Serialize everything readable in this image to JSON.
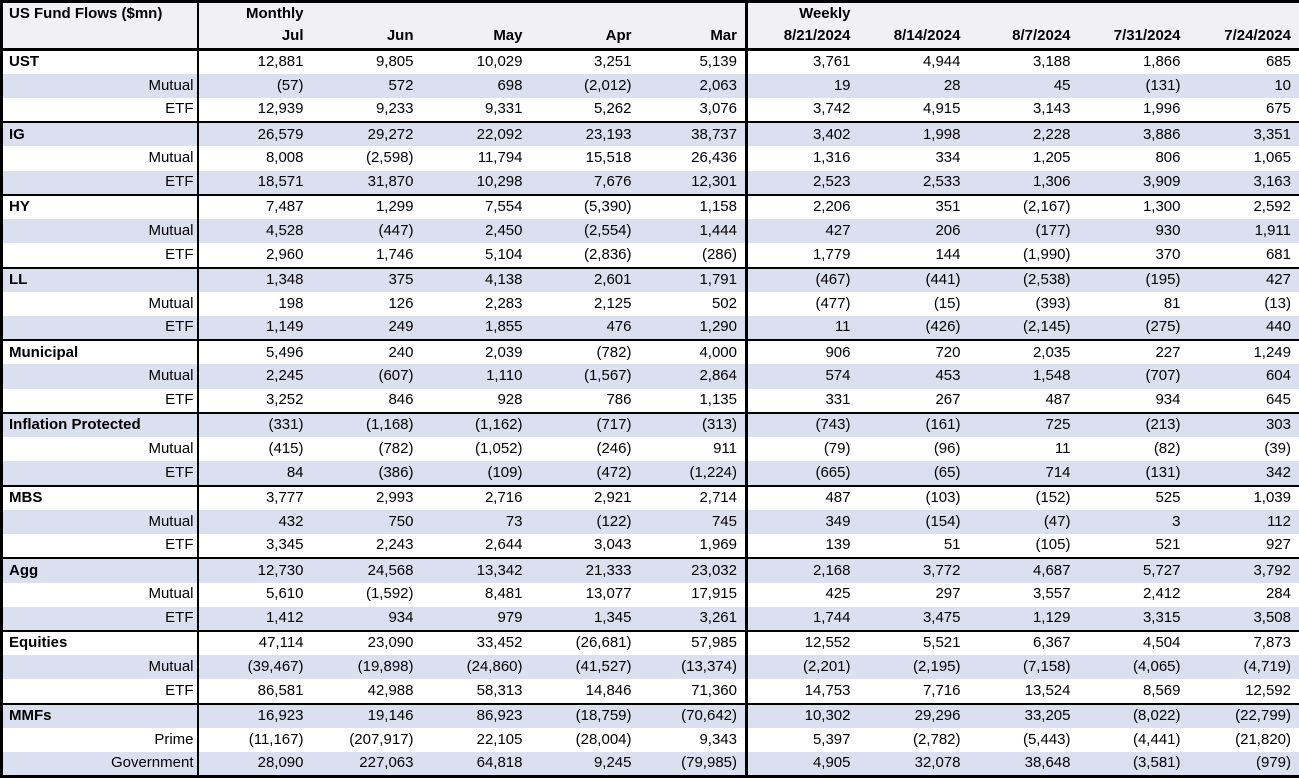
{
  "colors": {
    "band": "#DBE0F1",
    "header_bg": "#F1F1F3",
    "border": "#000000",
    "text": "#000000"
  },
  "chart_data": {
    "type": "table",
    "title": "US Fund Flows ($mn)",
    "section_labels": {
      "monthly": "Monthly",
      "weekly": "Weekly"
    },
    "monthly_columns": [
      "Jul",
      "Jun",
      "May",
      "Apr",
      "Mar"
    ],
    "weekly_columns": [
      "8/21/2024",
      "8/14/2024",
      "8/7/2024",
      "7/31/2024",
      "7/24/2024"
    ],
    "groups": [
      {
        "rows": [
          {
            "label": "UST",
            "monthly": [
              "12,881",
              "9,805",
              "10,029",
              "3,251",
              "5,139"
            ],
            "weekly": [
              "3,761",
              "4,944",
              "3,188",
              "1,866",
              "685"
            ]
          },
          {
            "label": "Mutual",
            "monthly": [
              "(57)",
              "572",
              "698",
              "(2,012)",
              "2,063"
            ],
            "weekly": [
              "19",
              "28",
              "45",
              "(131)",
              "10"
            ]
          },
          {
            "label": "ETF",
            "monthly": [
              "12,939",
              "9,233",
              "9,331",
              "5,262",
              "3,076"
            ],
            "weekly": [
              "3,742",
              "4,915",
              "3,143",
              "1,996",
              "675"
            ]
          }
        ]
      },
      {
        "rows": [
          {
            "label": "IG",
            "monthly": [
              "26,579",
              "29,272",
              "22,092",
              "23,193",
              "38,737"
            ],
            "weekly": [
              "3,402",
              "1,998",
              "2,228",
              "3,886",
              "3,351"
            ]
          },
          {
            "label": "Mutual",
            "monthly": [
              "8,008",
              "(2,598)",
              "11,794",
              "15,518",
              "26,436"
            ],
            "weekly": [
              "1,316",
              "334",
              "1,205",
              "806",
              "1,065"
            ]
          },
          {
            "label": "ETF",
            "monthly": [
              "18,571",
              "31,870",
              "10,298",
              "7,676",
              "12,301"
            ],
            "weekly": [
              "2,523",
              "2,533",
              "1,306",
              "3,909",
              "3,163"
            ]
          }
        ]
      },
      {
        "rows": [
          {
            "label": "HY",
            "monthly": [
              "7,487",
              "1,299",
              "7,554",
              "(5,390)",
              "1,158"
            ],
            "weekly": [
              "2,206",
              "351",
              "(2,167)",
              "1,300",
              "2,592"
            ]
          },
          {
            "label": "Mutual",
            "monthly": [
              "4,528",
              "(447)",
              "2,450",
              "(2,554)",
              "1,444"
            ],
            "weekly": [
              "427",
              "206",
              "(177)",
              "930",
              "1,911"
            ]
          },
          {
            "label": "ETF",
            "monthly": [
              "2,960",
              "1,746",
              "5,104",
              "(2,836)",
              "(286)"
            ],
            "weekly": [
              "1,779",
              "144",
              "(1,990)",
              "370",
              "681"
            ]
          }
        ]
      },
      {
        "rows": [
          {
            "label": "LL",
            "monthly": [
              "1,348",
              "375",
              "4,138",
              "2,601",
              "1,791"
            ],
            "weekly": [
              "(467)",
              "(441)",
              "(2,538)",
              "(195)",
              "427"
            ]
          },
          {
            "label": "Mutual",
            "monthly": [
              "198",
              "126",
              "2,283",
              "2,125",
              "502"
            ],
            "weekly": [
              "(477)",
              "(15)",
              "(393)",
              "81",
              "(13)"
            ]
          },
          {
            "label": "ETF",
            "monthly": [
              "1,149",
              "249",
              "1,855",
              "476",
              "1,290"
            ],
            "weekly": [
              "11",
              "(426)",
              "(2,145)",
              "(275)",
              "440"
            ]
          }
        ]
      },
      {
        "rows": [
          {
            "label": "Municipal",
            "monthly": [
              "5,496",
              "240",
              "2,039",
              "(782)",
              "4,000"
            ],
            "weekly": [
              "906",
              "720",
              "2,035",
              "227",
              "1,249"
            ]
          },
          {
            "label": "Mutual",
            "monthly": [
              "2,245",
              "(607)",
              "1,110",
              "(1,567)",
              "2,864"
            ],
            "weekly": [
              "574",
              "453",
              "1,548",
              "(707)",
              "604"
            ]
          },
          {
            "label": "ETF",
            "monthly": [
              "3,252",
              "846",
              "928",
              "786",
              "1,135"
            ],
            "weekly": [
              "331",
              "267",
              "487",
              "934",
              "645"
            ]
          }
        ]
      },
      {
        "rows": [
          {
            "label": "Inflation Protected",
            "monthly": [
              "(331)",
              "(1,168)",
              "(1,162)",
              "(717)",
              "(313)"
            ],
            "weekly": [
              "(743)",
              "(161)",
              "725",
              "(213)",
              "303"
            ]
          },
          {
            "label": "Mutual",
            "monthly": [
              "(415)",
              "(782)",
              "(1,052)",
              "(246)",
              "911"
            ],
            "weekly": [
              "(79)",
              "(96)",
              "11",
              "(82)",
              "(39)"
            ]
          },
          {
            "label": "ETF",
            "monthly": [
              "84",
              "(386)",
              "(109)",
              "(472)",
              "(1,224)"
            ],
            "weekly": [
              "(665)",
              "(65)",
              "714",
              "(131)",
              "342"
            ]
          }
        ]
      },
      {
        "rows": [
          {
            "label": "MBS",
            "monthly": [
              "3,777",
              "2,993",
              "2,716",
              "2,921",
              "2,714"
            ],
            "weekly": [
              "487",
              "(103)",
              "(152)",
              "525",
              "1,039"
            ]
          },
          {
            "label": "Mutual",
            "monthly": [
              "432",
              "750",
              "73",
              "(122)",
              "745"
            ],
            "weekly": [
              "349",
              "(154)",
              "(47)",
              "3",
              "112"
            ]
          },
          {
            "label": "ETF",
            "monthly": [
              "3,345",
              "2,243",
              "2,644",
              "3,043",
              "1,969"
            ],
            "weekly": [
              "139",
              "51",
              "(105)",
              "521",
              "927"
            ]
          }
        ]
      },
      {
        "rows": [
          {
            "label": "Agg",
            "monthly": [
              "12,730",
              "24,568",
              "13,342",
              "21,333",
              "23,032"
            ],
            "weekly": [
              "2,168",
              "3,772",
              "4,687",
              "5,727",
              "3,792"
            ]
          },
          {
            "label": "Mutual",
            "monthly": [
              "5,610",
              "(1,592)",
              "8,481",
              "13,077",
              "17,915"
            ],
            "weekly": [
              "425",
              "297",
              "3,557",
              "2,412",
              "284"
            ]
          },
          {
            "label": "ETF",
            "monthly": [
              "1,412",
              "934",
              "979",
              "1,345",
              "3,261"
            ],
            "weekly": [
              "1,744",
              "3,475",
              "1,129",
              "3,315",
              "3,508"
            ]
          }
        ]
      },
      {
        "rows": [
          {
            "label": "Equities",
            "monthly": [
              "47,114",
              "23,090",
              "33,452",
              "(26,681)",
              "57,985"
            ],
            "weekly": [
              "12,552",
              "5,521",
              "6,367",
              "4,504",
              "7,873"
            ]
          },
          {
            "label": "Mutual",
            "monthly": [
              "(39,467)",
              "(19,898)",
              "(24,860)",
              "(41,527)",
              "(13,374)"
            ],
            "weekly": [
              "(2,201)",
              "(2,195)",
              "(7,158)",
              "(4,065)",
              "(4,719)"
            ]
          },
          {
            "label": "ETF",
            "monthly": [
              "86,581",
              "42,988",
              "58,313",
              "14,846",
              "71,360"
            ],
            "weekly": [
              "14,753",
              "7,716",
              "13,524",
              "8,569",
              "12,592"
            ]
          }
        ]
      },
      {
        "rows": [
          {
            "label": "MMFs",
            "monthly": [
              "16,923",
              "19,146",
              "86,923",
              "(18,759)",
              "(70,642)"
            ],
            "weekly": [
              "10,302",
              "29,296",
              "33,205",
              "(8,022)",
              "(22,799)"
            ]
          },
          {
            "label": "Prime",
            "monthly": [
              "(11,167)",
              "(207,917)",
              "22,105",
              "(28,004)",
              "9,343"
            ],
            "weekly": [
              "5,397",
              "(2,782)",
              "(5,443)",
              "(4,441)",
              "(21,820)"
            ]
          },
          {
            "label": "Government",
            "monthly": [
              "28,090",
              "227,063",
              "64,818",
              "9,245",
              "(79,985)"
            ],
            "weekly": [
              "4,905",
              "32,078",
              "38,648",
              "(3,581)",
              "(979)"
            ]
          }
        ]
      }
    ]
  }
}
